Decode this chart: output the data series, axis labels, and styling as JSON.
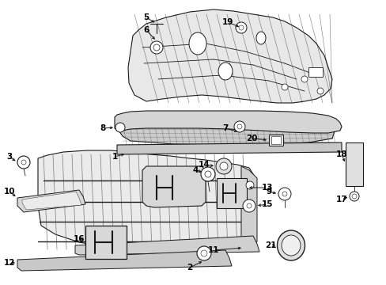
{
  "bg_color": "#ffffff",
  "line_color": "#1a1a1a",
  "label_color": "#000000",
  "figsize": [
    4.89,
    3.6
  ],
  "dpi": 100,
  "xlim": [
    0,
    489
  ],
  "ylim": [
    0,
    360
  ]
}
